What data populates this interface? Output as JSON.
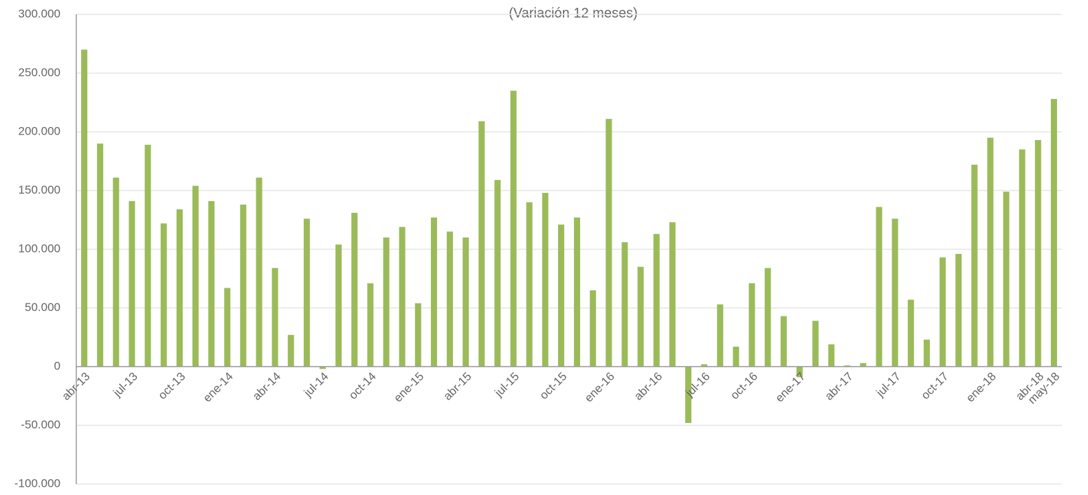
{
  "chart_data": {
    "type": "bar",
    "title": "(Variación 12 meses)",
    "categories": [
      "abr-13",
      null,
      null,
      "jul-13",
      null,
      null,
      "oct-13",
      null,
      null,
      "ene-14",
      null,
      null,
      "abr-14",
      null,
      null,
      "jul-14",
      null,
      null,
      "oct-14",
      null,
      null,
      "ene-15",
      null,
      null,
      "abr-15",
      null,
      null,
      "jul-15",
      null,
      null,
      "oct-15",
      null,
      null,
      "ene-16",
      null,
      null,
      "abr-16",
      null,
      null,
      "jul-16",
      null,
      null,
      "oct-16",
      null,
      null,
      "ene-17",
      null,
      null,
      "abr-17",
      null,
      null,
      "jul-17",
      null,
      null,
      "oct-17",
      null,
      null,
      "ene-18",
      null,
      null,
      "abr-18",
      "may-18"
    ],
    "values": [
      270000,
      190000,
      161000,
      141000,
      189000,
      122000,
      134000,
      154000,
      141000,
      67000,
      138000,
      161000,
      84000,
      27000,
      126000,
      -2000,
      104000,
      131000,
      71000,
      110000,
      119000,
      54000,
      127000,
      115000,
      110000,
      209000,
      159000,
      235000,
      140000,
      148000,
      121000,
      127000,
      65000,
      211000,
      106000,
      85000,
      113000,
      123000,
      -48000,
      2000,
      53000,
      17000,
      71000,
      84000,
      43000,
      -9000,
      39000,
      19000,
      1000,
      3000,
      136000,
      126000,
      57000,
      23000,
      93000,
      96000,
      172000,
      195000,
      149000,
      185000,
      193000,
      228000
    ],
    "color": "#9bbb59",
    "ylim": [
      -100000,
      300000
    ],
    "yticks": [
      {
        "value": -100000,
        "label": "-100.000"
      },
      {
        "value": -50000,
        "label": "-50.000"
      },
      0,
      {
        "value": 50000,
        "label": "50.000"
      },
      {
        "value": 100000,
        "label": "100.000"
      },
      {
        "value": 150000,
        "label": "150.000"
      },
      {
        "value": 200000,
        "label": "200.000"
      },
      {
        "value": 250000,
        "label": "250.000"
      },
      {
        "value": 300000,
        "label": "300.000"
      }
    ],
    "grid": true
  }
}
